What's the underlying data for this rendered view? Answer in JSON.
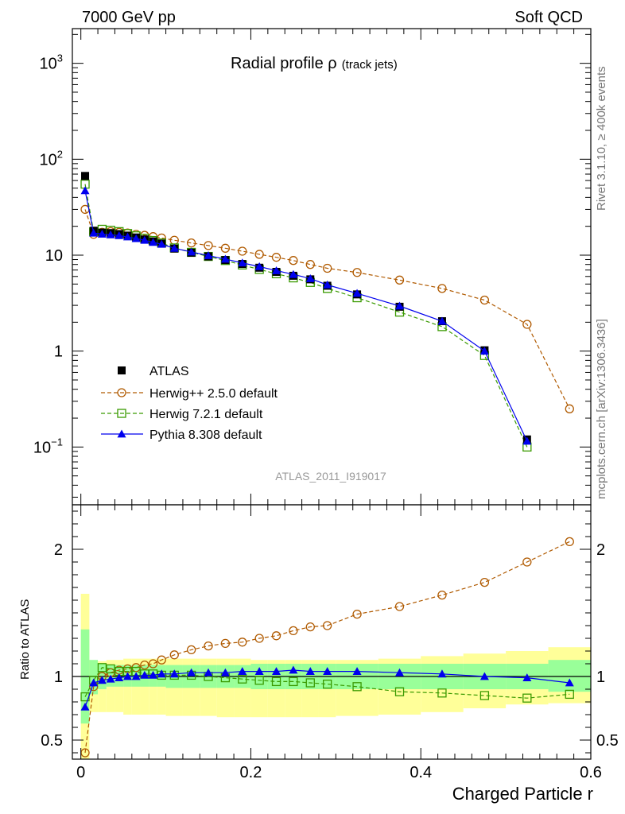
{
  "header": {
    "left_label": "7000 GeV pp",
    "right_label": "Soft QCD"
  },
  "chart_data": {
    "type": "line",
    "title_main": "Radial profile ",
    "title_symbol": "ρ",
    "title_sub": "(track jets)",
    "watermark": "ATLAS_2011_I919017",
    "side_label_top": "Rivet 3.1.10, ≥ 400k events",
    "side_label_bottom": "mcplots.cern.ch [arXiv:1306.3436]",
    "xlabel": "Charged Particle r",
    "ratio_ylabel": "Ratio to ATLAS",
    "xlim": [
      -0.01,
      0.6
    ],
    "upper": {
      "yscale": "log",
      "ylim": [
        0.025,
        2300
      ]
    },
    "lower": {
      "ylim": [
        0.35,
        2.35
      ]
    },
    "x_ticks": [
      {
        "value": 0,
        "label": "0"
      },
      {
        "value": 0.2,
        "label": "0.2"
      },
      {
        "value": 0.4,
        "label": "0.4"
      },
      {
        "value": 0.6,
        "label": "0.6"
      }
    ],
    "upper_ticks": [
      {
        "value": 0.1,
        "base": "10",
        "exp": "−1"
      },
      {
        "value": 1,
        "base": "1",
        "exp": ""
      },
      {
        "value": 10,
        "base": "10",
        "exp": ""
      },
      {
        "value": 100,
        "base": "10",
        "exp": "2"
      },
      {
        "value": 1000,
        "base": "10",
        "exp": "3"
      }
    ],
    "ratio_ticks": [
      {
        "value": 0.5,
        "label": "0.5"
      },
      {
        "value": 1,
        "label": "1"
      },
      {
        "value": 2,
        "label": "2"
      }
    ],
    "x": [
      0.005,
      0.015,
      0.025,
      0.035,
      0.045,
      0.055,
      0.065,
      0.075,
      0.085,
      0.095,
      0.11,
      0.13,
      0.15,
      0.17,
      0.19,
      0.21,
      0.23,
      0.25,
      0.27,
      0.29,
      0.325,
      0.375,
      0.425,
      0.475,
      0.525,
      0.575
    ],
    "bin_edges": [
      0.0,
      0.01,
      0.02,
      0.03,
      0.04,
      0.05,
      0.06,
      0.07,
      0.08,
      0.09,
      0.1,
      0.12,
      0.14,
      0.16,
      0.18,
      0.2,
      0.22,
      0.24,
      0.26,
      0.28,
      0.3,
      0.35,
      0.4,
      0.45,
      0.5,
      0.55,
      0.6
    ],
    "band_stat": [
      [
        0.63,
        1.37
      ],
      [
        0.86,
        1.13
      ],
      [
        0.9,
        1.1
      ],
      [
        0.92,
        1.09
      ],
      [
        0.92,
        1.09
      ],
      [
        0.92,
        1.09
      ],
      [
        0.92,
        1.09
      ],
      [
        0.92,
        1.09
      ],
      [
        0.92,
        1.09
      ],
      [
        0.92,
        1.09
      ],
      [
        0.91,
        1.09
      ],
      [
        0.91,
        1.09
      ],
      [
        0.91,
        1.09
      ],
      [
        0.91,
        1.09
      ],
      [
        0.91,
        1.09
      ],
      [
        0.9,
        1.1
      ],
      [
        0.9,
        1.1
      ],
      [
        0.9,
        1.1
      ],
      [
        0.9,
        1.1
      ],
      [
        0.9,
        1.1
      ],
      [
        0.9,
        1.1
      ],
      [
        0.9,
        1.1
      ],
      [
        0.9,
        1.1
      ],
      [
        0.9,
        1.1
      ],
      [
        0.9,
        1.1
      ],
      [
        0.88,
        1.13
      ]
    ],
    "band_total": [
      [
        0.33,
        1.65
      ],
      [
        0.72,
        1.12
      ],
      [
        0.72,
        1.12
      ],
      [
        0.72,
        1.13
      ],
      [
        0.72,
        1.13
      ],
      [
        0.7,
        1.14
      ],
      [
        0.7,
        1.14
      ],
      [
        0.7,
        1.14
      ],
      [
        0.7,
        1.14
      ],
      [
        0.7,
        1.14
      ],
      [
        0.69,
        1.14
      ],
      [
        0.69,
        1.14
      ],
      [
        0.69,
        1.14
      ],
      [
        0.68,
        1.14
      ],
      [
        0.68,
        1.14
      ],
      [
        0.68,
        1.13
      ],
      [
        0.68,
        1.13
      ],
      [
        0.68,
        1.13
      ],
      [
        0.68,
        1.13
      ],
      [
        0.68,
        1.13
      ],
      [
        0.69,
        1.13
      ],
      [
        0.7,
        1.14
      ],
      [
        0.72,
        1.16
      ],
      [
        0.75,
        1.18
      ],
      [
        0.78,
        1.2
      ],
      [
        0.79,
        1.23
      ]
    ],
    "series": [
      {
        "name": "ATLAS",
        "legend": "ATLAS",
        "color": "#000000",
        "marker": "square-filled",
        "line": "none",
        "values": [
          67,
          18,
          17.2,
          17,
          16.6,
          16,
          15.3,
          14.6,
          13.9,
          13.2,
          11.7,
          10.6,
          9.7,
          8.9,
          8.1,
          7.4,
          6.7,
          6.1,
          5.6,
          4.8,
          3.9,
          2.9,
          2.05,
          1.02,
          0.12,
          0
        ]
      },
      {
        "name": "Herwig++ 2.5.0 default",
        "legend": "Herwig++ 2.5.0 default",
        "color": "#b05a00",
        "marker": "circle-open",
        "line": "dashed",
        "values": [
          30,
          16.5,
          17.3,
          17.6,
          17.3,
          17.0,
          16.5,
          16.1,
          15.6,
          15.1,
          14.3,
          13.4,
          12.6,
          11.8,
          11.0,
          10.2,
          9.5,
          8.8,
          8.0,
          7.3,
          6.6,
          5.5,
          4.5,
          3.4,
          1.9,
          0.25
        ]
      },
      {
        "name": "Herwig 7.2.1 default",
        "legend": "Herwig 7.2.1 default",
        "color": "#3a9a00",
        "marker": "square-open",
        "line": "dashed",
        "values": [
          55,
          17.5,
          18.6,
          18.2,
          17.6,
          16.8,
          15.9,
          15.0,
          14.2,
          13.4,
          11.9,
          10.7,
          9.7,
          8.8,
          7.9,
          7.1,
          6.4,
          5.8,
          5.2,
          4.5,
          3.6,
          2.55,
          1.8,
          0.9,
          0.1,
          0
        ]
      },
      {
        "name": "Pythia 8.308 default",
        "legend": "Pythia 8.308 default",
        "color": "#0000ee",
        "marker": "triangle-filled",
        "line": "solid",
        "values": [
          47,
          17,
          16.6,
          16.3,
          16.0,
          15.5,
          14.9,
          14.3,
          13.6,
          13.0,
          11.8,
          10.8,
          9.9,
          9.1,
          8.3,
          7.6,
          6.9,
          6.3,
          5.7,
          4.9,
          4.0,
          2.95,
          2.05,
          1.0,
          0.115,
          0
        ]
      }
    ],
    "ratio_series": [
      {
        "name": "Herwig++ 2.5.0 default",
        "values": [
          0.4,
          0.92,
          1.0,
          1.03,
          1.05,
          1.06,
          1.07,
          1.09,
          1.1,
          1.13,
          1.17,
          1.21,
          1.24,
          1.26,
          1.27,
          1.3,
          1.32,
          1.36,
          1.39,
          1.4,
          1.49,
          1.55,
          1.64,
          1.74,
          1.9,
          2.06
        ]
      },
      {
        "name": "Herwig 7.2.1 default",
        "values": [
          0.84,
          0.97,
          1.07,
          1.06,
          1.04,
          1.04,
          1.04,
          1.02,
          1.02,
          1.01,
          1.01,
          1.01,
          1.0,
          0.99,
          0.98,
          0.97,
          0.96,
          0.96,
          0.95,
          0.94,
          0.92,
          0.88,
          0.87,
          0.85,
          0.83,
          0.86
        ]
      },
      {
        "name": "Pythia 8.308 default",
        "values": [
          0.76,
          0.95,
          0.97,
          0.98,
          0.99,
          1.0,
          1.0,
          1.01,
          1.01,
          1.02,
          1.02,
          1.03,
          1.03,
          1.03,
          1.04,
          1.04,
          1.04,
          1.05,
          1.04,
          1.04,
          1.04,
          1.03,
          1.02,
          1.0,
          0.99,
          0.95
        ]
      }
    ]
  }
}
